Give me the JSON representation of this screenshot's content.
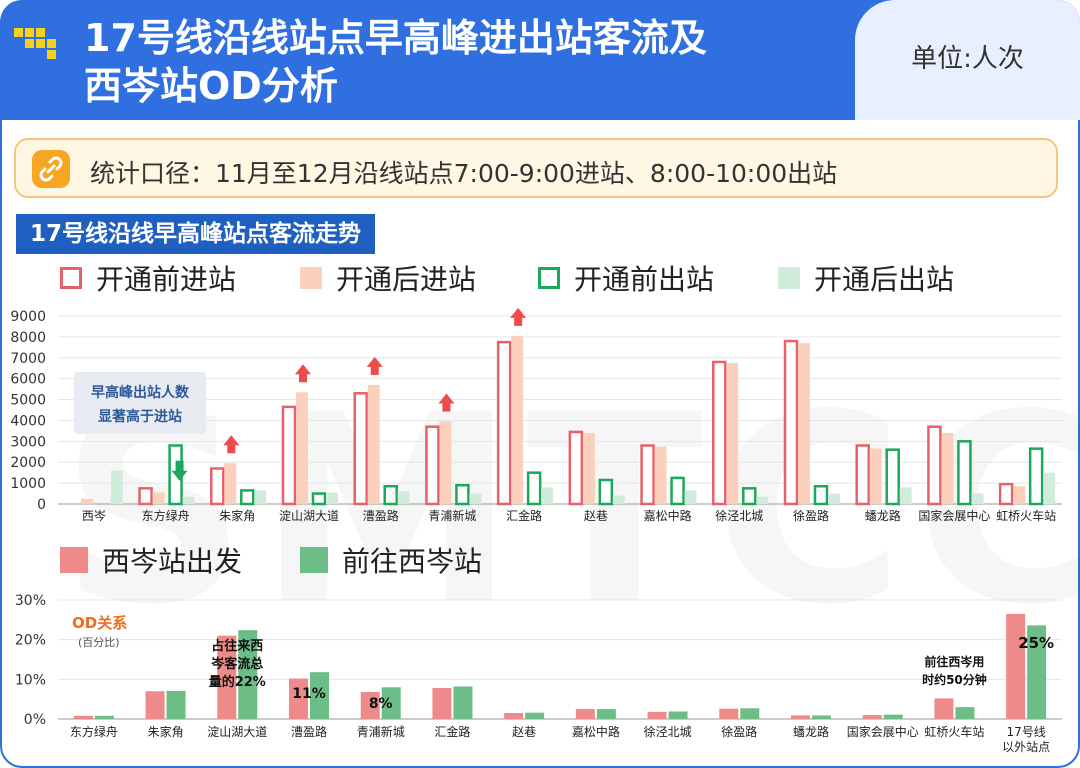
{
  "header": {
    "title_line1": "17号线沿线站点早高峰进出站客流及",
    "title_line2": "西岑站OD分析",
    "unit": "单位:人次"
  },
  "note": {
    "text": "统计口径：11月至12月沿线站点7:00-9:00进站、8:00-10:00出站"
  },
  "section1_title": "17号线沿线早高峰站点客流走势",
  "watermark": "SMTCC",
  "colors": {
    "header_blue": "#2f6fe0",
    "before_in": "#e8606a",
    "after_in": "#fbd0bc",
    "before_out": "#1aa85a",
    "after_out": "#d2ecdc",
    "from_xicen": "#ee8a8a",
    "to_xicen": "#6cbd86",
    "arrow_up": "#ef4b4b",
    "arrow_down": "#1aa85a",
    "annotation_orange": "#f26b1d"
  },
  "chart_data": [
    {
      "type": "bar",
      "ylim": [
        0,
        9000
      ],
      "yticks": [
        "0",
        "1000",
        "2000",
        "3000",
        "4000",
        "5000",
        "6000",
        "7000",
        "8000",
        "9000"
      ],
      "grid": true,
      "legend": "top",
      "categories": [
        "西岑",
        "东方绿舟",
        "朱家角",
        "淀山湖大道",
        "漕盈路",
        "青浦新城",
        "汇金路",
        "赵巷",
        "嘉松中路",
        "徐泾北城",
        "徐盈路",
        "蟠龙路",
        "国家会展中心",
        "虹桥火车站"
      ],
      "series": [
        {
          "name": "开通前进站",
          "style": "outline",
          "values": [
            0,
            750,
            1700,
            4650,
            5300,
            3700,
            7750,
            3450,
            2800,
            6800,
            7800,
            2800,
            3700,
            950
          ]
        },
        {
          "name": "开通后进站",
          "style": "filled",
          "values": [
            250,
            550,
            1950,
            5350,
            5700,
            3950,
            8050,
            3400,
            2750,
            6750,
            7700,
            2650,
            3400,
            850
          ]
        },
        {
          "name": "开通前出站",
          "style": "outline",
          "values": [
            0,
            2800,
            650,
            500,
            850,
            900,
            1500,
            1150,
            1250,
            750,
            850,
            2600,
            3000,
            2650
          ]
        },
        {
          "name": "开通后出站",
          "style": "filled",
          "values": [
            1600,
            350,
            650,
            550,
            600,
            500,
            800,
            400,
            650,
            350,
            500,
            800,
            500,
            1500
          ]
        }
      ],
      "annotations": {
        "box_text_line1": "早高峰出站人数",
        "box_text_line2": "显著高于进站",
        "up_arrow_categories": [
          "朱家角",
          "淀山湖大道",
          "漕盈路",
          "青浦新城",
          "汇金路"
        ],
        "down_arrow_category": "东方绿舟"
      }
    },
    {
      "type": "bar",
      "ylim": [
        0,
        30
      ],
      "yticks": [
        "0%",
        "10%",
        "20%",
        "30%"
      ],
      "grid": true,
      "legend": "top",
      "categories": [
        "东方绿舟",
        "朱家角",
        "淀山湖大道",
        "漕盈路",
        "青浦新城",
        "汇金路",
        "赵巷",
        "嘉松中路",
        "徐泾北城",
        "徐盈路",
        "蟠龙路",
        "国家会展中心",
        "虹桥火车站",
        "17号线|以外站点"
      ],
      "series": [
        {
          "name": "西岑站出发",
          "values": [
            0.8,
            7.0,
            21.0,
            10.2,
            6.8,
            7.8,
            1.5,
            2.5,
            1.8,
            2.6,
            0.9,
            1.0,
            5.2,
            26.5
          ]
        },
        {
          "name": "前往西岑站",
          "values": [
            0.8,
            7.1,
            22.4,
            11.8,
            8.0,
            8.2,
            1.6,
            2.5,
            1.9,
            2.7,
            0.9,
            1.1,
            3.0,
            23.6
          ]
        }
      ],
      "annotations": {
        "od_title": "OD关系",
        "od_subtitle": "(百分比)",
        "note_dianshanhu_lines": [
          "占往来西",
          "岑客流总",
          "量的22%"
        ],
        "label_caoying": "11%",
        "label_qingpu": "8%",
        "note_hongqiao_lines": [
          "前往西岑用",
          "时约50分钟"
        ],
        "label_other": "25%"
      }
    }
  ]
}
